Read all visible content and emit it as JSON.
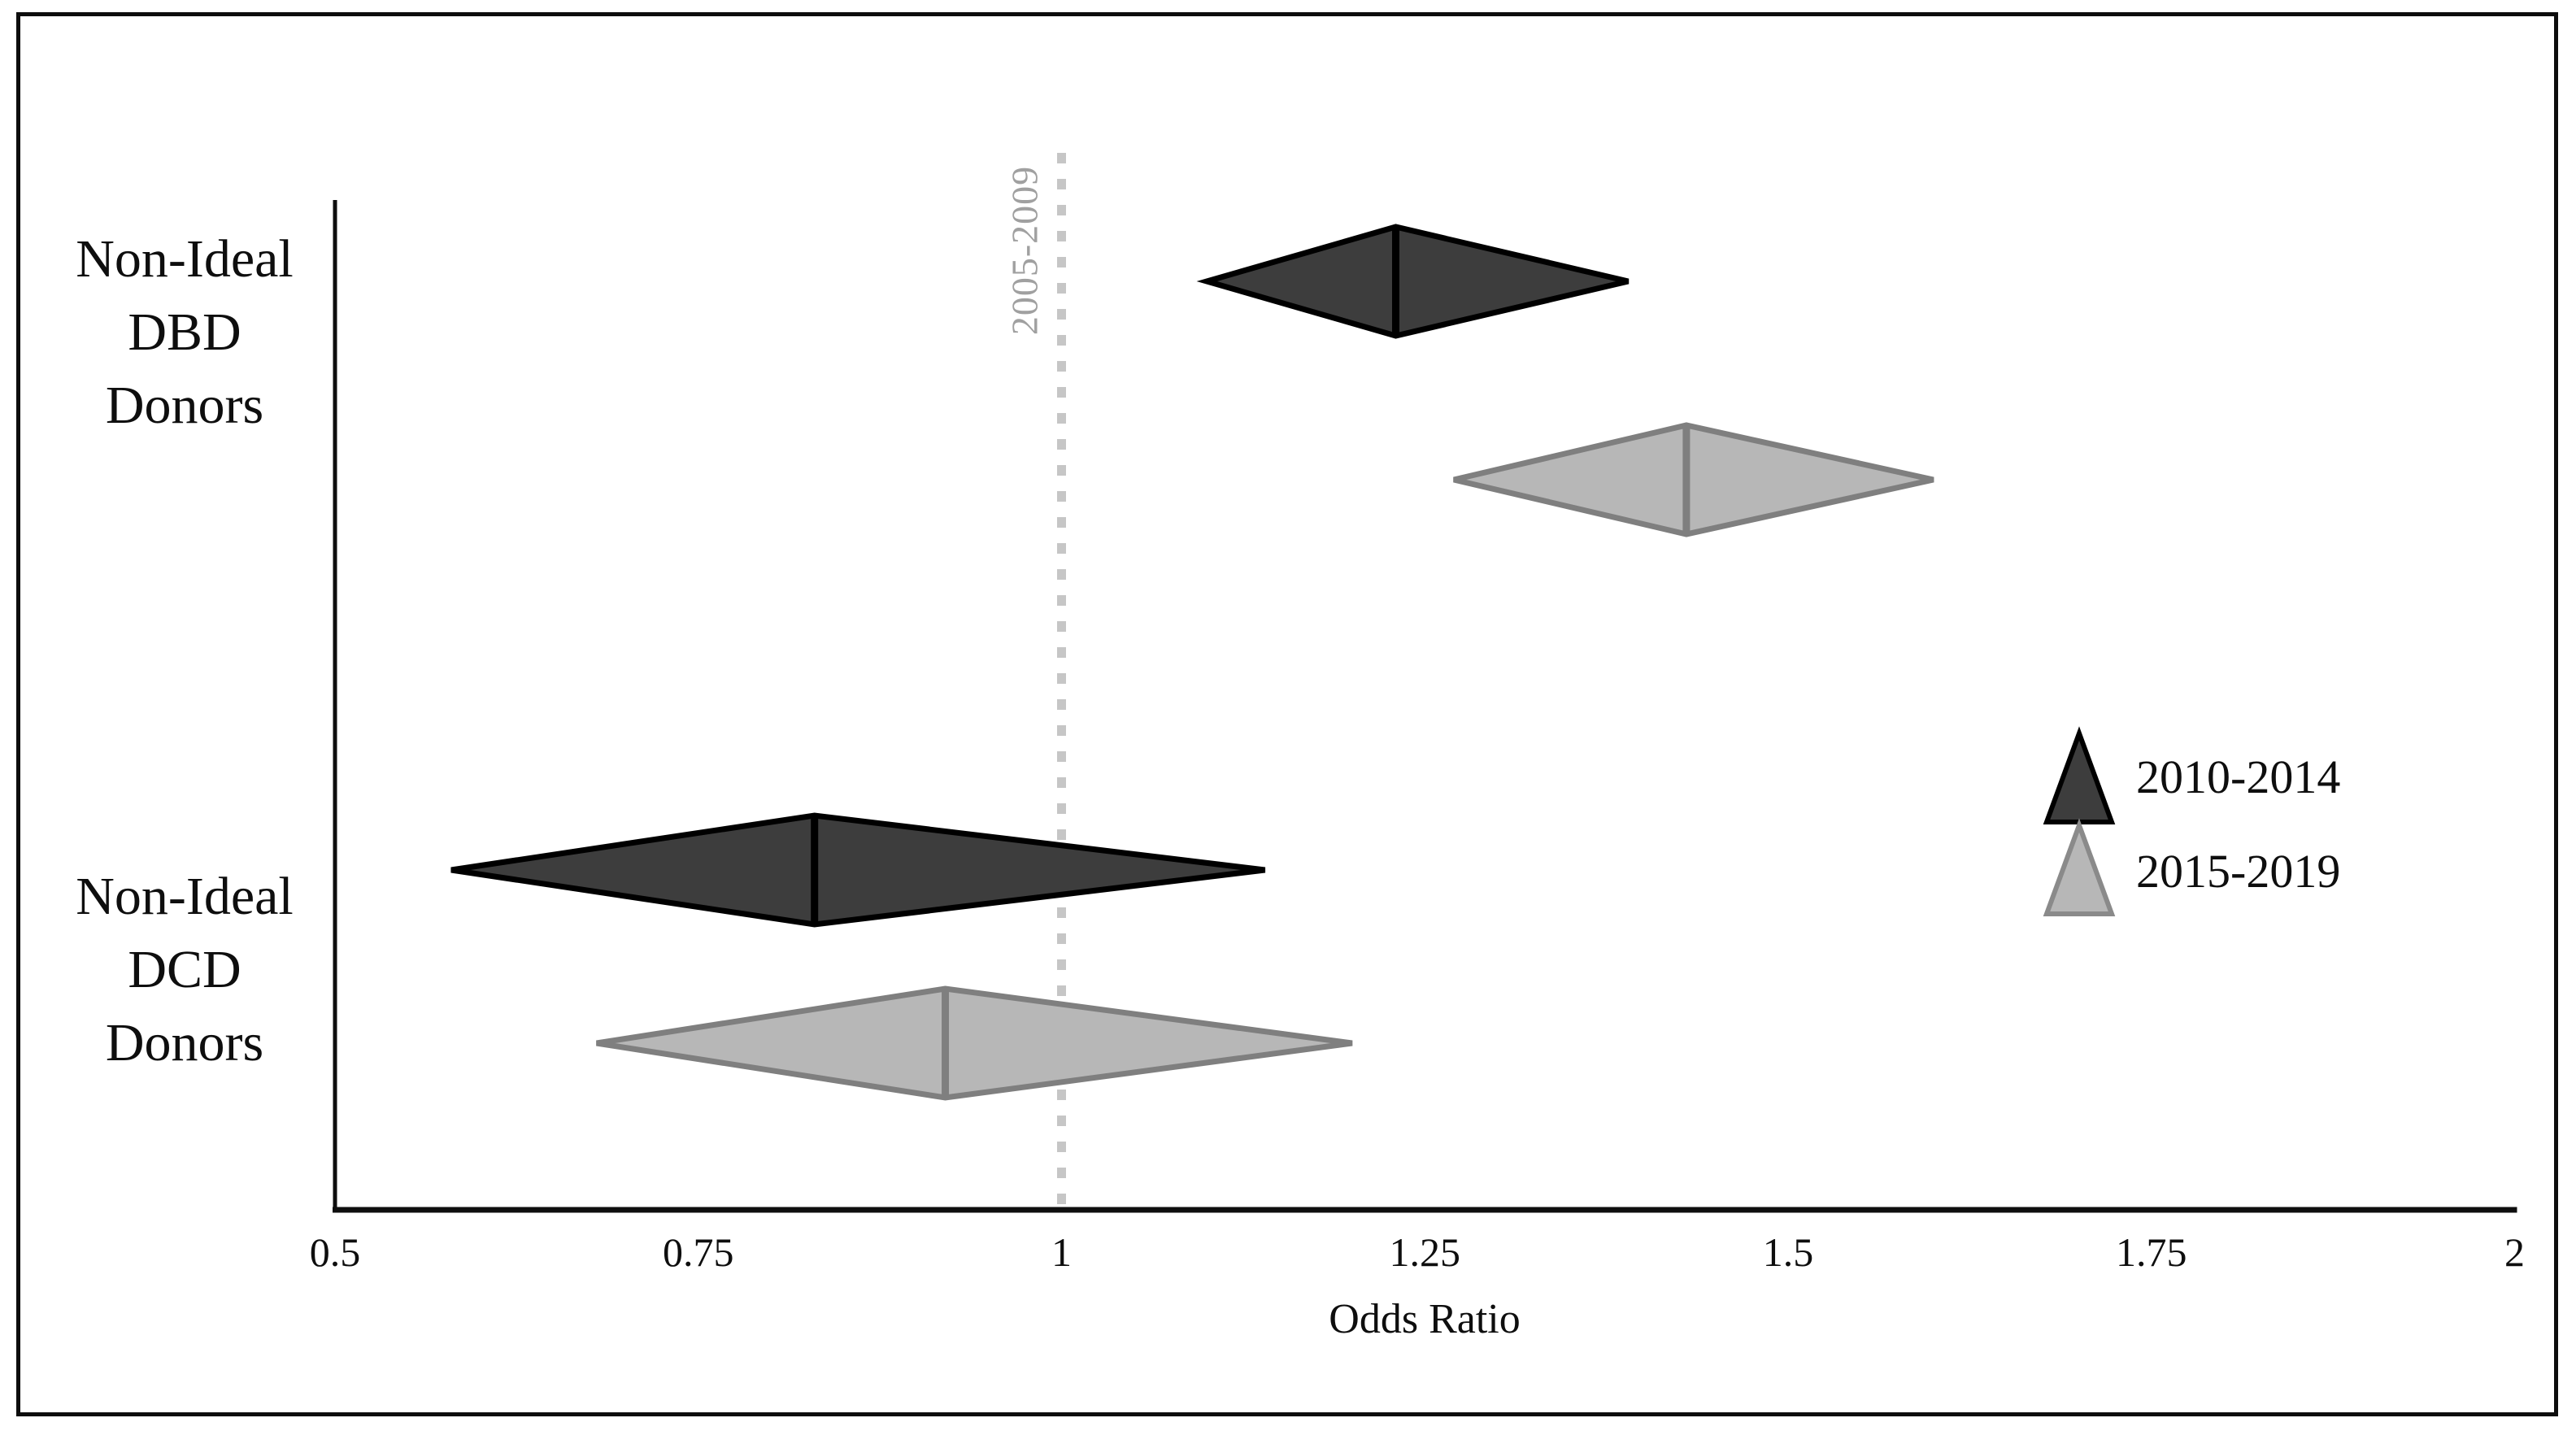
{
  "figure": {
    "background": "#ffffff",
    "border_color": "#0d0d0d"
  },
  "chart_data": {
    "type": "scatter",
    "subtype": "forest-plot-diamonds",
    "title": "",
    "xlabel": "Odds Ratio",
    "ylabel": "",
    "grid": false,
    "x_axis": {
      "min": 0.5,
      "max": 2,
      "ticks": [
        0.5,
        0.75,
        1,
        1.25,
        1.5,
        1.75,
        2
      ],
      "tick_labels": [
        "0.5",
        "0.75",
        "1",
        "1.25",
        "1.5",
        "1.75",
        "2"
      ]
    },
    "reference_line": {
      "x": 1,
      "label": "2005-2009",
      "style": "dotted",
      "color": "#c6c6c6",
      "label_color": "#a0a0a0"
    },
    "categories": [
      {
        "name": "Non-Ideal DBD Donors",
        "label_lines": [
          "Non-Ideal",
          "DBD",
          "Donors"
        ]
      },
      {
        "name": "Non-Ideal DCD Donors",
        "label_lines": [
          "Non-Ideal",
          "DCD",
          "Donors"
        ]
      }
    ],
    "series": [
      {
        "name": "2010-2014",
        "marker": "diamond",
        "fill": "#3d3d3d",
        "stroke": "#000000",
        "values": [
          {
            "category": "Non-Ideal DBD Donors",
            "estimate": 1.23,
            "ci_low": 1.1,
            "ci_high": 1.39
          },
          {
            "category": "Non-Ideal DCD Donors",
            "estimate": 0.83,
            "ci_low": 0.58,
            "ci_high": 1.14
          }
        ]
      },
      {
        "name": "2015-2019",
        "marker": "diamond",
        "fill": "#b7b7b7",
        "stroke": "#7f7f7f",
        "values": [
          {
            "category": "Non-Ideal DBD Donors",
            "estimate": 1.43,
            "ci_low": 1.27,
            "ci_high": 1.6
          },
          {
            "category": "Non-Ideal DCD Donors",
            "estimate": 0.92,
            "ci_low": 0.68,
            "ci_high": 1.2
          }
        ]
      }
    ],
    "legend": {
      "position": "right",
      "entries": [
        {
          "label": "2010-2014",
          "marker": "triangle",
          "fill": "#3d3d3d",
          "stroke": "#000000"
        },
        {
          "label": "2015-2019",
          "marker": "triangle",
          "fill": "#b7b7b7",
          "stroke": "#8a8a8a"
        }
      ]
    }
  }
}
